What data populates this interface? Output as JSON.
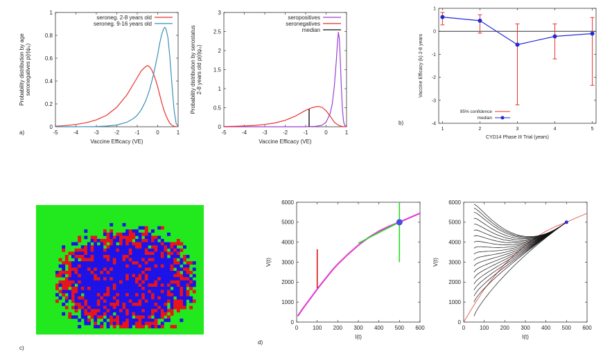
{
  "chart_data": [
    {
      "id": "a1",
      "type": "line",
      "panel_label": "a)",
      "xlabel": "Vaccine Efficacy (VE)",
      "ylabel": [
        "Probability distribution by age",
        "seronegatives p(r|ψ_0)"
      ],
      "xlim": [
        -5,
        1
      ],
      "ylim": [
        0,
        1
      ],
      "xticks": [
        -5,
        -4,
        -3,
        -2,
        -1,
        0,
        1
      ],
      "yticks": [
        0,
        0.2,
        0.4,
        0.6,
        0.8,
        1
      ],
      "legend_position": "top-right",
      "series": [
        {
          "name": "seroneg. 2-8 years old",
          "color": "#e8312a",
          "x": [
            -5,
            -4.5,
            -4,
            -3.5,
            -3,
            -2.5,
            -2,
            -1.5,
            -1.2,
            -1,
            -0.8,
            -0.6,
            -0.5,
            -0.4,
            -0.3,
            -0.2,
            -0.1,
            0,
            0.1,
            0.2,
            0.3,
            0.4,
            0.5,
            0.6,
            0.7,
            0.8,
            0.9,
            1
          ],
          "y": [
            0.005,
            0.01,
            0.02,
            0.035,
            0.06,
            0.1,
            0.17,
            0.28,
            0.37,
            0.43,
            0.49,
            0.525,
            0.535,
            0.525,
            0.5,
            0.46,
            0.41,
            0.35,
            0.28,
            0.21,
            0.15,
            0.1,
            0.06,
            0.03,
            0.012,
            0.004,
            0.001,
            0
          ]
        },
        {
          "name": "seroneg. 9-16 years old",
          "color": "#3a8fb7",
          "x": [
            -5,
            -4,
            -3,
            -2.5,
            -2,
            -1.5,
            -1.2,
            -1,
            -0.8,
            -0.6,
            -0.4,
            -0.2,
            0,
            0.1,
            0.2,
            0.3,
            0.35,
            0.4,
            0.5,
            0.6,
            0.7,
            0.8,
            0.9,
            1
          ],
          "y": [
            0,
            0,
            0.002,
            0.006,
            0.015,
            0.04,
            0.07,
            0.1,
            0.15,
            0.22,
            0.32,
            0.46,
            0.63,
            0.73,
            0.81,
            0.86,
            0.87,
            0.86,
            0.78,
            0.6,
            0.36,
            0.15,
            0.03,
            0
          ]
        }
      ]
    },
    {
      "id": "a2",
      "type": "line",
      "xlabel": "Vaccine Efficacy (VE)",
      "ylabel": [
        "Probability distribution by serostatus",
        "2-8 years old p(r|ψ_0)"
      ],
      "xlim": [
        -5,
        1
      ],
      "ylim": [
        0,
        3
      ],
      "xticks": [
        -5,
        -4,
        -3,
        -2,
        -1,
        0,
        1
      ],
      "yticks": [
        0,
        0.5,
        1,
        1.5,
        2,
        2.5,
        3
      ],
      "legend_position": "top-right",
      "series": [
        {
          "name": "seropositives",
          "color": "#9b3fd1",
          "x": [
            -5,
            -1,
            -0.5,
            -0.2,
            0,
            0.2,
            0.3,
            0.4,
            0.5,
            0.55,
            0.6,
            0.65,
            0.7,
            0.75,
            0.8,
            0.85,
            0.9,
            1
          ],
          "y": [
            0,
            0,
            0.01,
            0.04,
            0.12,
            0.35,
            0.6,
            1.05,
            1.75,
            2.15,
            2.48,
            2.3,
            1.7,
            1.0,
            0.45,
            0.15,
            0.04,
            0
          ]
        },
        {
          "name": "seronegatives",
          "color": "#e8312a",
          "x": [
            -5,
            -4.5,
            -4,
            -3.5,
            -3,
            -2.5,
            -2,
            -1.5,
            -1,
            -0.7,
            -0.4,
            -0.2,
            0,
            0.2,
            0.4,
            0.6,
            0.8,
            1
          ],
          "y": [
            0.005,
            0.01,
            0.02,
            0.035,
            0.06,
            0.1,
            0.17,
            0.28,
            0.43,
            0.5,
            0.535,
            0.51,
            0.42,
            0.28,
            0.12,
            0.04,
            0.005,
            0
          ]
        },
        {
          "name": "median",
          "color": "#111111",
          "x": [
            -0.83,
            -0.83
          ],
          "y": [
            0,
            0.47
          ]
        }
      ]
    },
    {
      "id": "b",
      "type": "line",
      "panel_label": "b)",
      "xlabel": "CYD14 Phase III Trial (years)",
      "ylabel": "Vaccine Efficacy (k) 2-8 years",
      "xlim": [
        0.9,
        5.1
      ],
      "ylim": [
        -4,
        1
      ],
      "xticks": [
        1,
        2,
        3,
        4,
        5
      ],
      "yticks": [
        -4,
        -3,
        -2,
        -1,
        0,
        1
      ],
      "legend_position": "bottom-left",
      "series": [
        {
          "name": "median",
          "color": "#1f2bd6",
          "x": [
            1,
            2,
            3,
            4,
            5
          ],
          "y": [
            0.62,
            0.46,
            -0.58,
            -0.22,
            -0.1
          ]
        },
        {
          "name": "95% confidence",
          "color": "#e8312a",
          "x": [
            1,
            2,
            3,
            4,
            5
          ],
          "lower": [
            0.28,
            -0.08,
            -3.2,
            -1.2,
            -2.35
          ],
          "upper": [
            0.82,
            0.72,
            0.32,
            0.32,
            0.6
          ]
        }
      ]
    },
    {
      "id": "c",
      "type": "heatmap",
      "panel_label": "c)",
      "grid": [
        44,
        33
      ],
      "colors": {
        "background": "#22e81e",
        "core": "#1d13e8",
        "edge": "#e8141a"
      }
    },
    {
      "id": "d1",
      "type": "line",
      "panel_label": "d)",
      "xlabel": "I(t)",
      "ylabel": "V(t)",
      "xlim": [
        0,
        600
      ],
      "ylim": [
        0,
        6000
      ],
      "xticks": [
        0,
        100,
        200,
        300,
        400,
        500,
        600
      ],
      "yticks": [
        0,
        1000,
        2000,
        3000,
        4000,
        5000,
        6000
      ],
      "series": [
        {
          "color": "#e040d0",
          "x": [
            5,
            25,
            50,
            75,
            100,
            125,
            150,
            175,
            200,
            250,
            300,
            350,
            400,
            450,
            500,
            550,
            600
          ],
          "y": [
            300,
            600,
            950,
            1300,
            1650,
            1980,
            2300,
            2620,
            2900,
            3400,
            3850,
            4230,
            4550,
            4800,
            5000,
            5230,
            5450
          ]
        },
        {
          "color": "#d41414",
          "x": [
            100,
            100
          ],
          "y": [
            1700,
            3650
          ]
        },
        {
          "color": "#22dd22",
          "x": [
            300,
            500
          ],
          "y": [
            3950,
            5000
          ]
        },
        {
          "color": "#22dd22",
          "x": [
            500,
            500
          ],
          "y": [
            3000,
            6000
          ]
        }
      ],
      "point": {
        "x": 500,
        "y": 5000,
        "color": "#4a4ae8"
      }
    },
    {
      "id": "d2",
      "type": "line",
      "xlabel": "I(t)",
      "ylabel": "V(t)",
      "xlim": [
        0,
        600
      ],
      "ylim": [
        0,
        6000
      ],
      "xticks": [
        0,
        100,
        200,
        300,
        400,
        500,
        600
      ],
      "yticks": [
        0,
        1000,
        2000,
        3000,
        4000,
        5000,
        6000
      ],
      "curve_color": "#e86060",
      "trajectory_color": "#111111",
      "trajectory_start_x": 50,
      "trajectory_start_y": [
        300,
        1000,
        1300,
        1600,
        1900,
        2200,
        2500,
        2800,
        3100,
        3400,
        3700,
        4000,
        4300,
        4600,
        4900,
        5200,
        5500,
        5700,
        5900
      ],
      "end_point": {
        "x": 500,
        "y": 5000
      }
    }
  ]
}
